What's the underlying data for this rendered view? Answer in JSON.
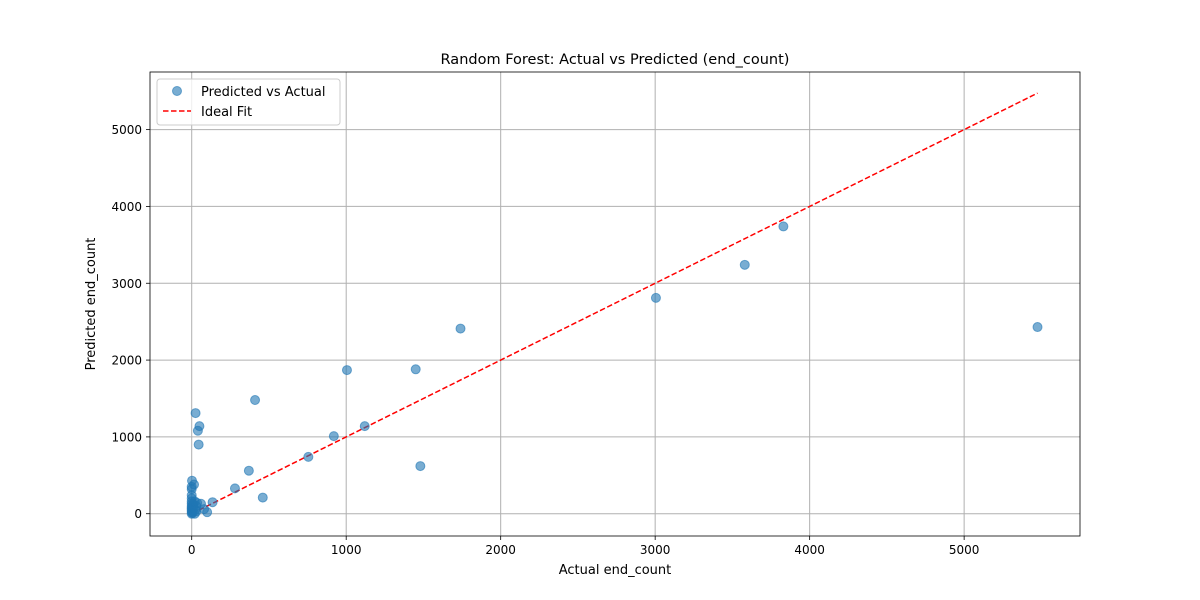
{
  "chart_data": {
    "type": "scatter",
    "title": "Random Forest: Actual vs Predicted (end_count)",
    "xlabel": "Actual end_count",
    "ylabel": "Predicted end_count",
    "xlim": [
      -270,
      5750
    ],
    "ylim": [
      -290,
      5750
    ],
    "xticks": [
      0,
      1000,
      2000,
      3000,
      4000,
      5000
    ],
    "yticks": [
      0,
      1000,
      2000,
      3000,
      4000,
      5000
    ],
    "grid": true,
    "legend_position": "top-left",
    "series": [
      {
        "name": "Predicted vs Actual",
        "kind": "scatter",
        "color": "#1f77b4",
        "points": [
          [
            0,
            0
          ],
          [
            0,
            20
          ],
          [
            0,
            40
          ],
          [
            0,
            60
          ],
          [
            0,
            80
          ],
          [
            0,
            100
          ],
          [
            0,
            130
          ],
          [
            0,
            160
          ],
          [
            0,
            200
          ],
          [
            0,
            240
          ],
          [
            0,
            320
          ],
          [
            0,
            350
          ],
          [
            2,
            430
          ],
          [
            5,
            10
          ],
          [
            8,
            30
          ],
          [
            10,
            80
          ],
          [
            10,
            120
          ],
          [
            15,
            380
          ],
          [
            20,
            0
          ],
          [
            20,
            160
          ],
          [
            25,
            50
          ],
          [
            25,
            1310
          ],
          [
            30,
            30
          ],
          [
            30,
            100
          ],
          [
            35,
            140
          ],
          [
            40,
            1080
          ],
          [
            45,
            900
          ],
          [
            50,
            1140
          ],
          [
            60,
            130
          ],
          [
            80,
            60
          ],
          [
            100,
            20
          ],
          [
            135,
            150
          ],
          [
            280,
            330
          ],
          [
            370,
            560
          ],
          [
            410,
            1480
          ],
          [
            460,
            210
          ],
          [
            755,
            740
          ],
          [
            920,
            1010
          ],
          [
            1005,
            1870
          ],
          [
            1120,
            1140
          ],
          [
            1450,
            1880
          ],
          [
            1480,
            620
          ],
          [
            1740,
            2410
          ],
          [
            3005,
            2810
          ],
          [
            3580,
            3240
          ],
          [
            3830,
            3740
          ],
          [
            5475,
            2430
          ]
        ]
      },
      {
        "name": "Ideal Fit",
        "kind": "line",
        "color": "#ff0000",
        "style": "dashed",
        "x": [
          0,
          5475
        ],
        "y": [
          0,
          5475
        ]
      }
    ]
  }
}
